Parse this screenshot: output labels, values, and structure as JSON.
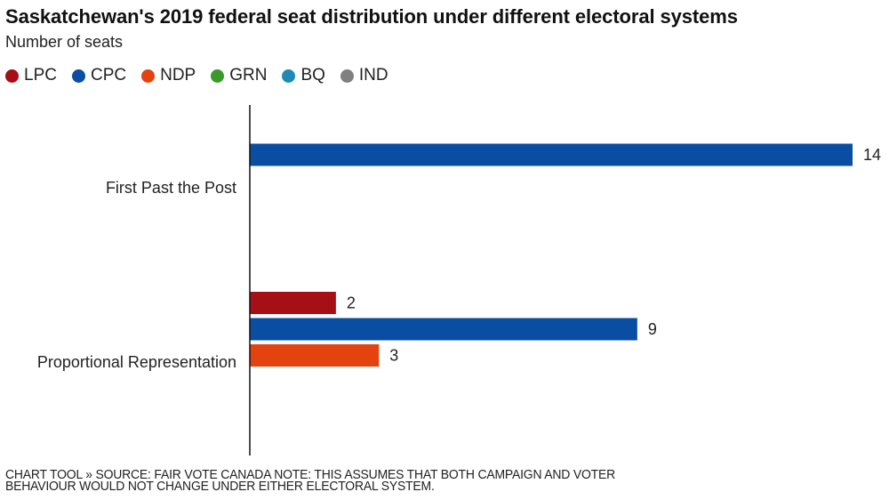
{
  "chart_data": {
    "type": "bar",
    "orientation": "horizontal",
    "title": "Saskatchewan's 2019 federal seat distribution under different electoral systems",
    "subtitle": "Number of seats",
    "xlabel": "",
    "ylabel": "",
    "xlim": [
      0,
      14
    ],
    "grid": false,
    "legend_position": "top-left",
    "legend": [
      {
        "name": "LPC",
        "color": "#a50f15"
      },
      {
        "name": "CPC",
        "color": "#0a4ea3"
      },
      {
        "name": "NDP",
        "color": "#e4420e"
      },
      {
        "name": "GRN",
        "color": "#3a9a2a"
      },
      {
        "name": "BQ",
        "color": "#1f8ab8"
      },
      {
        "name": "IND",
        "color": "#808080"
      }
    ],
    "categories": [
      "First Past the Post",
      "Proportional Representation"
    ],
    "groups": [
      {
        "category": "First Past the Post",
        "bars": [
          {
            "party": "CPC",
            "value": 14,
            "color": "#0a4ea3"
          }
        ]
      },
      {
        "category": "Proportional Representation",
        "bars": [
          {
            "party": "LPC",
            "value": 2,
            "color": "#a50f15"
          },
          {
            "party": "CPC",
            "value": 9,
            "color": "#0a4ea3"
          },
          {
            "party": "NDP",
            "value": 3,
            "color": "#e4420e"
          }
        ]
      }
    ]
  },
  "footer": {
    "line1": "CHART TOOL » SOURCE: FAIR VOTE CANADA NOTE: THIS ASSUMES THAT BOTH CAMPAIGN AND VOTER",
    "line2": "BEHAVIOUR WOULD NOT CHANGE UNDER EITHER ELECTORAL SYSTEM."
  }
}
